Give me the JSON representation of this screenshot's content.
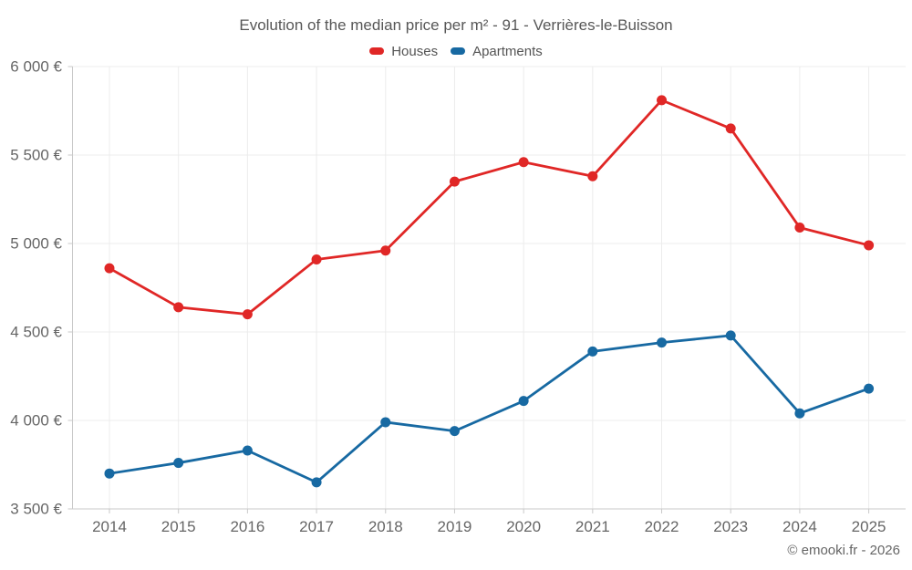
{
  "header": {
    "title": "Evolution of the median price per m² - 91 - Verrières-le-Buisson"
  },
  "footer": {
    "credit": "© emooki.fr - 2026"
  },
  "colors": {
    "houses": "#e02726",
    "apartments": "#1769a2",
    "gridline": "#ececec",
    "axis": "#c9c9c9",
    "axis_label": "#666666",
    "title_text": "#575757"
  },
  "chart_data": {
    "type": "line",
    "title": "Evolution of the median price per m² - 91 - Verrières-le-Buisson",
    "categories": [
      "2014",
      "2015",
      "2016",
      "2017",
      "2018",
      "2019",
      "2020",
      "2021",
      "2022",
      "2023",
      "2024",
      "2025"
    ],
    "series": [
      {
        "name": "Houses",
        "color": "#e02726",
        "values": [
          4860,
          4640,
          4600,
          4910,
          4960,
          5350,
          5460,
          5380,
          5810,
          5650,
          5090,
          4990
        ]
      },
      {
        "name": "Apartments",
        "color": "#1769a2",
        "values": [
          3700,
          3760,
          3830,
          3650,
          3990,
          3940,
          4110,
          4390,
          4440,
          4480,
          4040,
          4180
        ]
      }
    ],
    "xlabel": "",
    "ylabel": "",
    "ylim": [
      3500,
      6000
    ],
    "ytick_step": 500,
    "yticks": [
      {
        "value": 3500,
        "label": "3 500 €"
      },
      {
        "value": 4000,
        "label": "4 000 €"
      },
      {
        "value": 4500,
        "label": "4 500 €"
      },
      {
        "value": 5000,
        "label": "5 000 €"
      },
      {
        "value": 5500,
        "label": "5 500 €"
      },
      {
        "value": 6000,
        "label": "6 000 €"
      }
    ],
    "grid": true,
    "legend_position": "top",
    "marker": "circle"
  }
}
